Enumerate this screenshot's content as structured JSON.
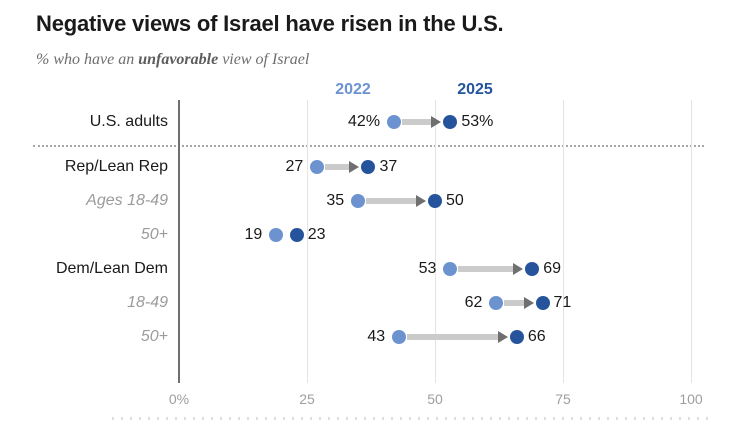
{
  "title": "Negative views of Israel have risen in the U.S.",
  "subtitle": {
    "prefix": "% who have an ",
    "emphasis": "unfavorable",
    "suffix": " view of Israel"
  },
  "legend": {
    "start_label": "2022",
    "end_label": "2025"
  },
  "chart_data": {
    "type": "dumbbell",
    "title": "Negative views of Israel have risen in the U.S.",
    "subtitle": "% who have an unfavorable view of Israel",
    "series": [
      "2022",
      "2025"
    ],
    "x_axis": {
      "min": 0,
      "max": 100,
      "tick_values": [
        0,
        25,
        50,
        75,
        100
      ],
      "tick_labels": [
        "0%",
        "25",
        "50",
        "75",
        "100"
      ],
      "grid": true
    },
    "rows": [
      {
        "label": "U.S. adults",
        "style": "group",
        "values": {
          "2022": 42,
          "2025": 53
        },
        "value_suffix": "%",
        "arrow": true,
        "separator_after": true
      },
      {
        "label": "Rep/Lean Rep",
        "style": "group",
        "values": {
          "2022": 27,
          "2025": 37
        },
        "arrow": true
      },
      {
        "label": "Ages 18-49",
        "style": "sub",
        "values": {
          "2022": 35,
          "2025": 50
        },
        "arrow": true
      },
      {
        "label": "50+",
        "style": "sub",
        "values": {
          "2022": 19,
          "2025": 23
        },
        "arrow": false
      },
      {
        "label": "Dem/Lean Dem",
        "style": "group",
        "values": {
          "2022": 53,
          "2025": 69
        },
        "arrow": true
      },
      {
        "label": "18-49",
        "style": "sub",
        "values": {
          "2022": 62,
          "2025": 71
        },
        "arrow": true
      },
      {
        "label": "50+",
        "style": "sub",
        "values": {
          "2022": 43,
          "2025": 66
        },
        "arrow": true
      }
    ],
    "colors": {
      "start_dot": "#6C93D0",
      "end_dot": "#26549C",
      "arrow_shaft": "#CBCBCB",
      "arrow_head": "#6F6F6F",
      "grid_line": "#E4E4E4",
      "axis_line": "#6F6F6F",
      "tick_label": "#9E9E9E",
      "group_label": "#1A1A1A",
      "sub_label": "#9B9B9B",
      "value_label": "#1A1A1A"
    }
  }
}
